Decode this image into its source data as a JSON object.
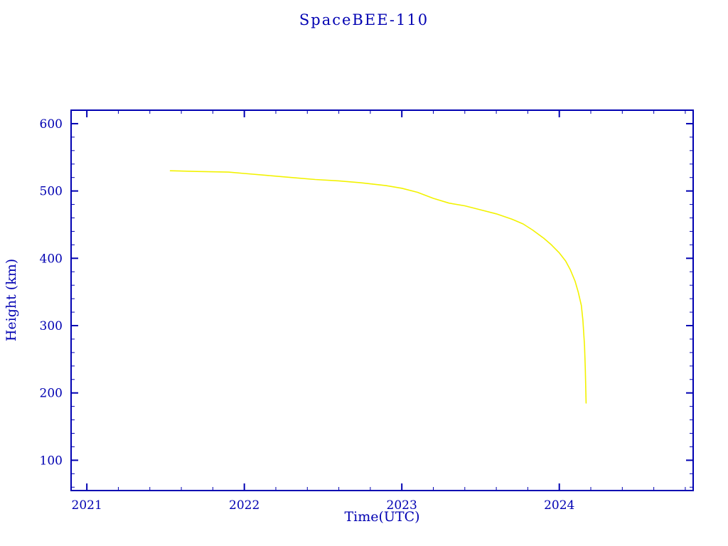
{
  "chart_data": {
    "type": "line",
    "title": "SpaceBEE-110",
    "xlabel": "Time(UTC)",
    "ylabel": "Height (km)",
    "xlim": [
      2020.9,
      2024.85
    ],
    "ylim": [
      55,
      620
    ],
    "x_ticks": [
      2021,
      2022,
      2023,
      2024
    ],
    "y_ticks": [
      100,
      200,
      300,
      400,
      500,
      600
    ],
    "x_minor_step": 0.2,
    "y_minor_step": 20,
    "grid": false,
    "legend": "none",
    "axis_color": "#0000b2",
    "background": "#ffffff",
    "series": [
      {
        "name": "orbital-height",
        "color": "#f2f200",
        "x": [
          2021.53,
          2021.7,
          2021.9,
          2022.0,
          2022.15,
          2022.3,
          2022.45,
          2022.6,
          2022.75,
          2022.9,
          2023.0,
          2023.1,
          2023.2,
          2023.3,
          2023.4,
          2023.5,
          2023.6,
          2023.7,
          2023.77,
          2023.83,
          2023.9,
          2023.95,
          2024.0,
          2024.04,
          2024.07,
          2024.1,
          2024.12,
          2024.14,
          2024.15,
          2024.16,
          2024.165,
          2024.17
        ],
        "y": [
          530,
          529,
          528,
          526,
          523,
          520,
          517,
          515,
          512,
          508,
          504,
          498,
          489,
          482,
          478,
          472,
          466,
          458,
          451,
          442,
          430,
          420,
          408,
          396,
          383,
          366,
          350,
          330,
          308,
          270,
          235,
          185
        ]
      }
    ]
  }
}
